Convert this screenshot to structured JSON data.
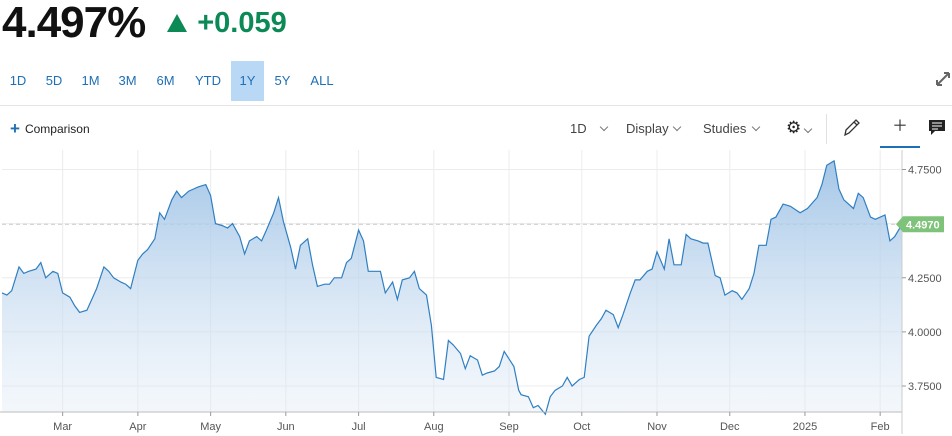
{
  "quote": {
    "price": "4.497%",
    "change": "+0.059",
    "direction": "up",
    "change_color": "#0b8a55"
  },
  "ranges": [
    {
      "label": "1D"
    },
    {
      "label": "5D"
    },
    {
      "label": "1M"
    },
    {
      "label": "3M"
    },
    {
      "label": "6M"
    },
    {
      "label": "YTD"
    },
    {
      "label": "1Y",
      "active": true
    },
    {
      "label": "5Y"
    },
    {
      "label": "ALL"
    }
  ],
  "toolbar": {
    "comparison": "Comparison",
    "interval": "1D",
    "display": "Display",
    "studies": "Studies"
  },
  "icons": [
    "expand-icon",
    "plus-icon",
    "gear-icon",
    "pencil-icon",
    "crosshair-icon",
    "comment-icon"
  ],
  "chart_data": {
    "type": "area",
    "title": "",
    "xlabel": "",
    "ylabel": "",
    "line_color": "#2f7fc1",
    "fill_color": "#a9c9e8",
    "last_value_label": "4.4970",
    "last_value_color": "#7fc27a",
    "ylim": [
      3.63,
      4.84
    ],
    "y_ticks": [
      "4.7500",
      "4.5000",
      "4.2500",
      "4.0000",
      "3.7500"
    ],
    "x_ticks": [
      {
        "label": "Mar",
        "date": "2024-03-01"
      },
      {
        "label": "Apr",
        "date": "2024-04-01"
      },
      {
        "label": "May",
        "date": "2024-05-01"
      },
      {
        "label": "Jun",
        "date": "2024-06-01"
      },
      {
        "label": "Jul",
        "date": "2024-07-01"
      },
      {
        "label": "Aug",
        "date": "2024-08-01"
      },
      {
        "label": "Sep",
        "date": "2024-09-01"
      },
      {
        "label": "Oct",
        "date": "2024-10-01"
      },
      {
        "label": "Nov",
        "date": "2024-11-01"
      },
      {
        "label": "Dec",
        "date": "2024-12-01"
      },
      {
        "label": "2025",
        "date": "2025-01-01"
      },
      {
        "label": "Feb",
        "date": "2025-02-01"
      }
    ],
    "x_range": [
      "2024-02-05",
      "2025-02-10"
    ],
    "series": [
      {
        "points": [
          [
            "2024-02-05",
            4.18
          ],
          [
            "2024-02-07",
            4.17
          ],
          [
            "2024-02-09",
            4.19
          ],
          [
            "2024-02-12",
            4.3
          ],
          [
            "2024-02-14",
            4.27
          ],
          [
            "2024-02-16",
            4.28
          ],
          [
            "2024-02-19",
            4.29
          ],
          [
            "2024-02-21",
            4.32
          ],
          [
            "2024-02-23",
            4.25
          ],
          [
            "2024-02-26",
            4.28
          ],
          [
            "2024-02-28",
            4.27
          ],
          [
            "2024-03-01",
            4.18
          ],
          [
            "2024-03-04",
            4.16
          ],
          [
            "2024-03-06",
            4.12
          ],
          [
            "2024-03-08",
            4.09
          ],
          [
            "2024-03-11",
            4.1
          ],
          [
            "2024-03-13",
            4.15
          ],
          [
            "2024-03-15",
            4.2
          ],
          [
            "2024-03-18",
            4.3
          ],
          [
            "2024-03-20",
            4.28
          ],
          [
            "2024-03-22",
            4.25
          ],
          [
            "2024-03-25",
            4.23
          ],
          [
            "2024-03-27",
            4.22
          ],
          [
            "2024-03-29",
            4.2
          ],
          [
            "2024-04-01",
            4.33
          ],
          [
            "2024-04-03",
            4.36
          ],
          [
            "2024-04-05",
            4.38
          ],
          [
            "2024-04-08",
            4.43
          ],
          [
            "2024-04-10",
            4.55
          ],
          [
            "2024-04-12",
            4.52
          ],
          [
            "2024-04-15",
            4.61
          ],
          [
            "2024-04-17",
            4.65
          ],
          [
            "2024-04-19",
            4.62
          ],
          [
            "2024-04-22",
            4.65
          ],
          [
            "2024-04-24",
            4.66
          ],
          [
            "2024-04-26",
            4.67
          ],
          [
            "2024-04-29",
            4.68
          ],
          [
            "2024-05-01",
            4.63
          ],
          [
            "2024-05-03",
            4.5
          ],
          [
            "2024-05-06",
            4.49
          ],
          [
            "2024-05-08",
            4.48
          ],
          [
            "2024-05-10",
            4.5
          ],
          [
            "2024-05-13",
            4.44
          ],
          [
            "2024-05-15",
            4.36
          ],
          [
            "2024-05-17",
            4.42
          ],
          [
            "2024-05-20",
            4.44
          ],
          [
            "2024-05-22",
            4.42
          ],
          [
            "2024-05-24",
            4.47
          ],
          [
            "2024-05-27",
            4.55
          ],
          [
            "2024-05-29",
            4.62
          ],
          [
            "2024-05-31",
            4.51
          ],
          [
            "2024-06-03",
            4.39
          ],
          [
            "2024-06-05",
            4.29
          ],
          [
            "2024-06-07",
            4.4
          ],
          [
            "2024-06-10",
            4.43
          ],
          [
            "2024-06-12",
            4.31
          ],
          [
            "2024-06-14",
            4.21
          ],
          [
            "2024-06-17",
            4.22
          ],
          [
            "2024-06-19",
            4.22
          ],
          [
            "2024-06-21",
            4.25
          ],
          [
            "2024-06-24",
            4.25
          ],
          [
            "2024-06-26",
            4.32
          ],
          [
            "2024-06-28",
            4.34
          ],
          [
            "2024-07-01",
            4.47
          ],
          [
            "2024-07-03",
            4.42
          ],
          [
            "2024-07-05",
            4.28
          ],
          [
            "2024-07-08",
            4.28
          ],
          [
            "2024-07-10",
            4.28
          ],
          [
            "2024-07-12",
            4.18
          ],
          [
            "2024-07-15",
            4.23
          ],
          [
            "2024-07-17",
            4.15
          ],
          [
            "2024-07-19",
            4.24
          ],
          [
            "2024-07-22",
            4.25
          ],
          [
            "2024-07-24",
            4.28
          ],
          [
            "2024-07-26",
            4.2
          ],
          [
            "2024-07-29",
            4.17
          ],
          [
            "2024-07-31",
            4.03
          ],
          [
            "2024-08-02",
            3.79
          ],
          [
            "2024-08-05",
            3.78
          ],
          [
            "2024-08-07",
            3.96
          ],
          [
            "2024-08-09",
            3.94
          ],
          [
            "2024-08-12",
            3.9
          ],
          [
            "2024-08-14",
            3.83
          ],
          [
            "2024-08-16",
            3.89
          ],
          [
            "2024-08-19",
            3.87
          ],
          [
            "2024-08-21",
            3.8
          ],
          [
            "2024-08-23",
            3.81
          ],
          [
            "2024-08-26",
            3.82
          ],
          [
            "2024-08-28",
            3.84
          ],
          [
            "2024-08-30",
            3.91
          ],
          [
            "2024-09-03",
            3.84
          ],
          [
            "2024-09-05",
            3.73
          ],
          [
            "2024-09-06",
            3.71
          ],
          [
            "2024-09-09",
            3.7
          ],
          [
            "2024-09-11",
            3.65
          ],
          [
            "2024-09-13",
            3.66
          ],
          [
            "2024-09-16",
            3.62
          ],
          [
            "2024-09-18",
            3.7
          ],
          [
            "2024-09-20",
            3.73
          ],
          [
            "2024-09-23",
            3.75
          ],
          [
            "2024-09-25",
            3.79
          ],
          [
            "2024-09-27",
            3.75
          ],
          [
            "2024-09-30",
            3.78
          ],
          [
            "2024-10-02",
            3.79
          ],
          [
            "2024-10-04",
            3.98
          ],
          [
            "2024-10-07",
            4.03
          ],
          [
            "2024-10-09",
            4.06
          ],
          [
            "2024-10-11",
            4.1
          ],
          [
            "2024-10-14",
            4.08
          ],
          [
            "2024-10-16",
            4.02
          ],
          [
            "2024-10-18",
            4.08
          ],
          [
            "2024-10-21",
            4.18
          ],
          [
            "2024-10-23",
            4.24
          ],
          [
            "2024-10-25",
            4.24
          ],
          [
            "2024-10-28",
            4.28
          ],
          [
            "2024-10-30",
            4.29
          ],
          [
            "2024-11-01",
            4.37
          ],
          [
            "2024-11-04",
            4.29
          ],
          [
            "2024-11-06",
            4.43
          ],
          [
            "2024-11-08",
            4.31
          ],
          [
            "2024-11-11",
            4.31
          ],
          [
            "2024-11-13",
            4.45
          ],
          [
            "2024-11-15",
            4.43
          ],
          [
            "2024-11-18",
            4.42
          ],
          [
            "2024-11-20",
            4.41
          ],
          [
            "2024-11-22",
            4.41
          ],
          [
            "2024-11-25",
            4.26
          ],
          [
            "2024-11-27",
            4.25
          ],
          [
            "2024-11-29",
            4.17
          ],
          [
            "2024-12-02",
            4.19
          ],
          [
            "2024-12-04",
            4.18
          ],
          [
            "2024-12-06",
            4.15
          ],
          [
            "2024-12-09",
            4.2
          ],
          [
            "2024-12-11",
            4.27
          ],
          [
            "2024-12-13",
            4.4
          ],
          [
            "2024-12-16",
            4.4
          ],
          [
            "2024-12-18",
            4.52
          ],
          [
            "2024-12-20",
            4.53
          ],
          [
            "2024-12-23",
            4.59
          ],
          [
            "2024-12-26",
            4.58
          ],
          [
            "2024-12-30",
            4.55
          ],
          [
            "2025-01-02",
            4.57
          ],
          [
            "2025-01-06",
            4.62
          ],
          [
            "2025-01-08",
            4.68
          ],
          [
            "2025-01-10",
            4.77
          ],
          [
            "2025-01-13",
            4.79
          ],
          [
            "2025-01-15",
            4.66
          ],
          [
            "2025-01-17",
            4.61
          ],
          [
            "2025-01-21",
            4.57
          ],
          [
            "2025-01-23",
            4.64
          ],
          [
            "2025-01-25",
            4.62
          ],
          [
            "2025-01-28",
            4.53
          ],
          [
            "2025-01-30",
            4.52
          ],
          [
            "2025-02-03",
            4.54
          ],
          [
            "2025-02-05",
            4.42
          ],
          [
            "2025-02-07",
            4.44
          ],
          [
            "2025-02-10",
            4.497
          ]
        ]
      }
    ]
  }
}
